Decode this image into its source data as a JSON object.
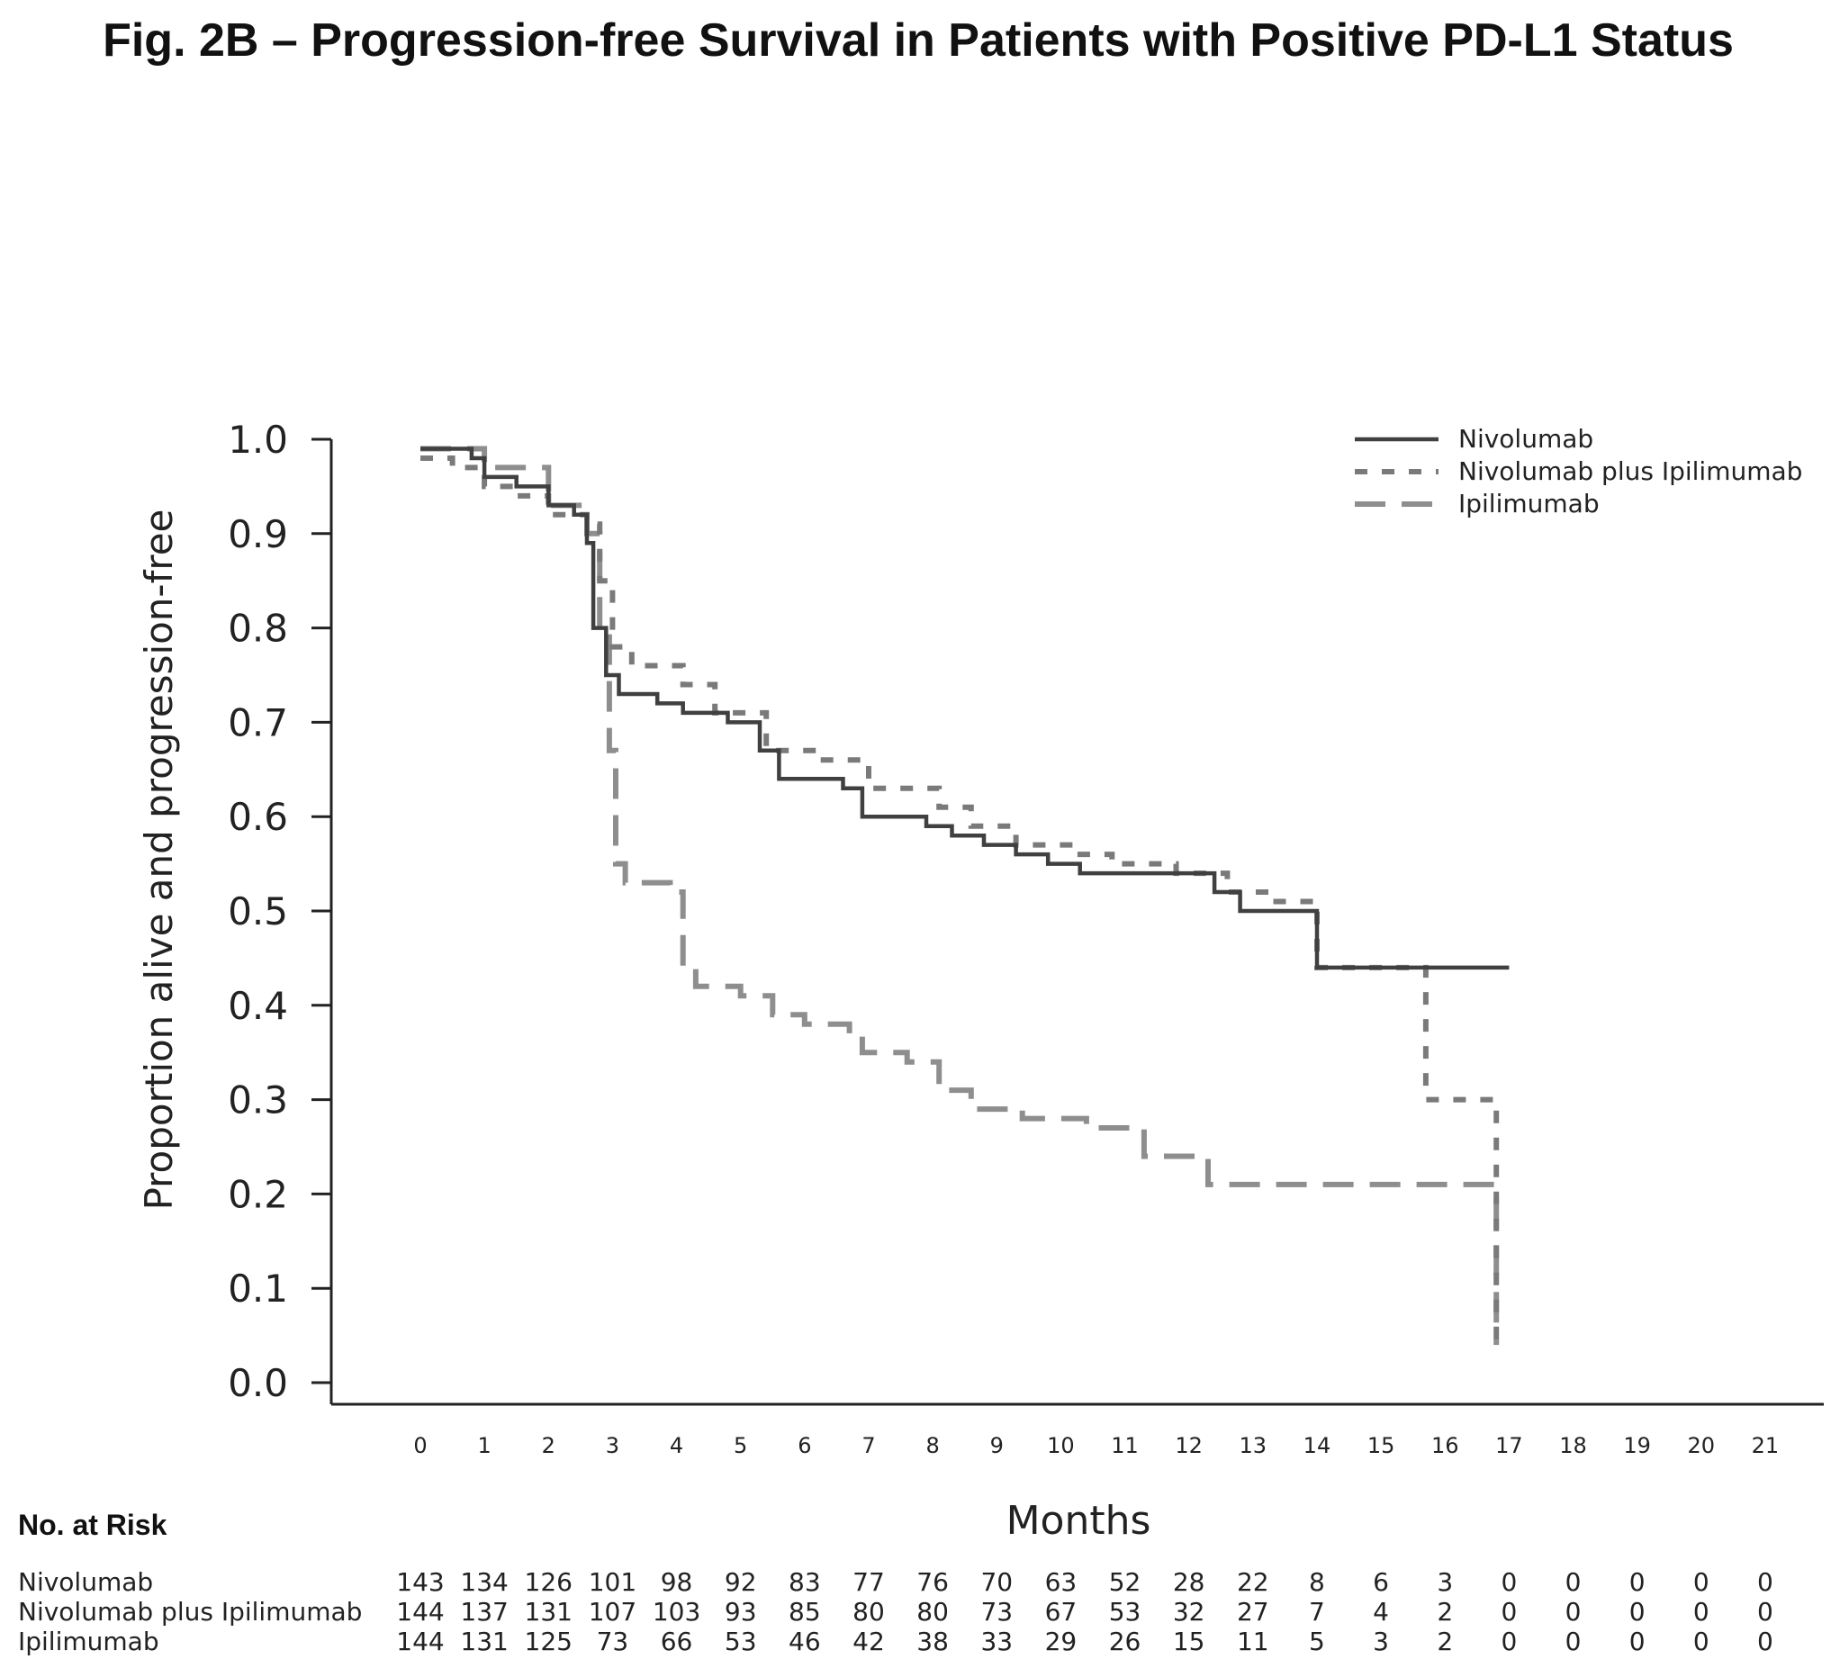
{
  "chart_data": {
    "type": "line",
    "step": true,
    "title": "Fig. 2B – Progression-free Survival in Patients with Positive PD-L1 Status",
    "xlabel": "Months",
    "ylabel": "Proportion alive and progression-free",
    "xlim": [
      0,
      21
    ],
    "ylim": [
      0,
      1
    ],
    "xticks": [
      "0",
      "1",
      "2",
      "3",
      "4",
      "5",
      "6",
      "7",
      "8",
      "9",
      "10",
      "11",
      "12",
      "13",
      "14",
      "15",
      "16",
      "17",
      "18",
      "19",
      "20",
      "21"
    ],
    "yticks": [
      "0.0",
      "0.1",
      "0.2",
      "0.3",
      "0.4",
      "0.5",
      "0.6",
      "0.7",
      "0.8",
      "0.9",
      "1.0"
    ],
    "legend_position": "top-right",
    "series": [
      {
        "name": "Nivolumab",
        "style": "solid",
        "color": "#404040",
        "points": [
          [
            0,
            0.99
          ],
          [
            0.8,
            0.98
          ],
          [
            1.0,
            0.96
          ],
          [
            1.5,
            0.95
          ],
          [
            2.0,
            0.93
          ],
          [
            2.4,
            0.92
          ],
          [
            2.6,
            0.89
          ],
          [
            2.7,
            0.8
          ],
          [
            2.9,
            0.75
          ],
          [
            3.1,
            0.73
          ],
          [
            3.7,
            0.72
          ],
          [
            4.1,
            0.71
          ],
          [
            4.8,
            0.7
          ],
          [
            5.3,
            0.67
          ],
          [
            5.6,
            0.64
          ],
          [
            6.6,
            0.63
          ],
          [
            6.9,
            0.6
          ],
          [
            7.9,
            0.59
          ],
          [
            8.3,
            0.58
          ],
          [
            8.8,
            0.57
          ],
          [
            9.3,
            0.56
          ],
          [
            9.8,
            0.55
          ],
          [
            10.3,
            0.54
          ],
          [
            11.0,
            0.54
          ],
          [
            12.4,
            0.52
          ],
          [
            12.8,
            0.5
          ],
          [
            14.0,
            0.49
          ],
          [
            14.0,
            0.44
          ],
          [
            17.0,
            0.44
          ]
        ]
      },
      {
        "name": "Nivolumab plus Ipilimumab",
        "style": "dotted",
        "color": "#7a7a7a",
        "points": [
          [
            0,
            0.98
          ],
          [
            0.5,
            0.97
          ],
          [
            1.0,
            0.95
          ],
          [
            1.5,
            0.94
          ],
          [
            2.0,
            0.92
          ],
          [
            2.6,
            0.91
          ],
          [
            2.8,
            0.85
          ],
          [
            3.0,
            0.78
          ],
          [
            3.3,
            0.76
          ],
          [
            4.1,
            0.74
          ],
          [
            4.6,
            0.71
          ],
          [
            5.4,
            0.67
          ],
          [
            6.2,
            0.66
          ],
          [
            7.0,
            0.63
          ],
          [
            8.1,
            0.61
          ],
          [
            8.6,
            0.59
          ],
          [
            9.3,
            0.57
          ],
          [
            10.2,
            0.56
          ],
          [
            10.8,
            0.55
          ],
          [
            11.8,
            0.54
          ],
          [
            12.6,
            0.52
          ],
          [
            13.2,
            0.51
          ],
          [
            14.0,
            0.44
          ],
          [
            15.2,
            0.44
          ],
          [
            15.7,
            0.44
          ],
          [
            15.7,
            0.3
          ],
          [
            16.8,
            0.29
          ],
          [
            16.8,
            0.04
          ]
        ]
      },
      {
        "name": "Ipilimumab",
        "style": "dashed",
        "color": "#8e8e8e",
        "points": [
          [
            0,
            0.99
          ],
          [
            1.0,
            0.97
          ],
          [
            2.0,
            0.93
          ],
          [
            2.6,
            0.9
          ],
          [
            2.8,
            0.8
          ],
          [
            2.95,
            0.67
          ],
          [
            3.05,
            0.55
          ],
          [
            3.2,
            0.53
          ],
          [
            3.9,
            0.52
          ],
          [
            4.1,
            0.44
          ],
          [
            4.3,
            0.42
          ],
          [
            5.0,
            0.41
          ],
          [
            5.5,
            0.39
          ],
          [
            6.0,
            0.38
          ],
          [
            6.7,
            0.37
          ],
          [
            6.9,
            0.35
          ],
          [
            7.6,
            0.34
          ],
          [
            8.1,
            0.31
          ],
          [
            8.6,
            0.29
          ],
          [
            9.4,
            0.28
          ],
          [
            10.4,
            0.27
          ],
          [
            11.3,
            0.24
          ],
          [
            12.3,
            0.21
          ],
          [
            16.8,
            0.21
          ],
          [
            16.8,
            0.04
          ]
        ]
      }
    ]
  },
  "risk_table": {
    "title": "No. at Risk",
    "rows": [
      {
        "label": "Nivolumab",
        "values": [
          "143",
          "134",
          "126",
          "101",
          "98",
          "92",
          "83",
          "77",
          "76",
          "70",
          "63",
          "52",
          "28",
          "22",
          "8",
          "6",
          "3",
          "0",
          "0",
          "0",
          "0",
          "0"
        ]
      },
      {
        "label": "Nivolumab plus Ipilimumab",
        "values": [
          "144",
          "137",
          "131",
          "107",
          "103",
          "93",
          "85",
          "80",
          "80",
          "73",
          "67",
          "53",
          "32",
          "27",
          "7",
          "4",
          "2",
          "0",
          "0",
          "0",
          "0",
          "0"
        ]
      },
      {
        "label": "Ipilimumab",
        "values": [
          "144",
          "131",
          "125",
          "73",
          "66",
          "53",
          "46",
          "42",
          "38",
          "33",
          "29",
          "26",
          "15",
          "11",
          "5",
          "3",
          "2",
          "0",
          "0",
          "0",
          "0",
          "0"
        ]
      }
    ]
  }
}
